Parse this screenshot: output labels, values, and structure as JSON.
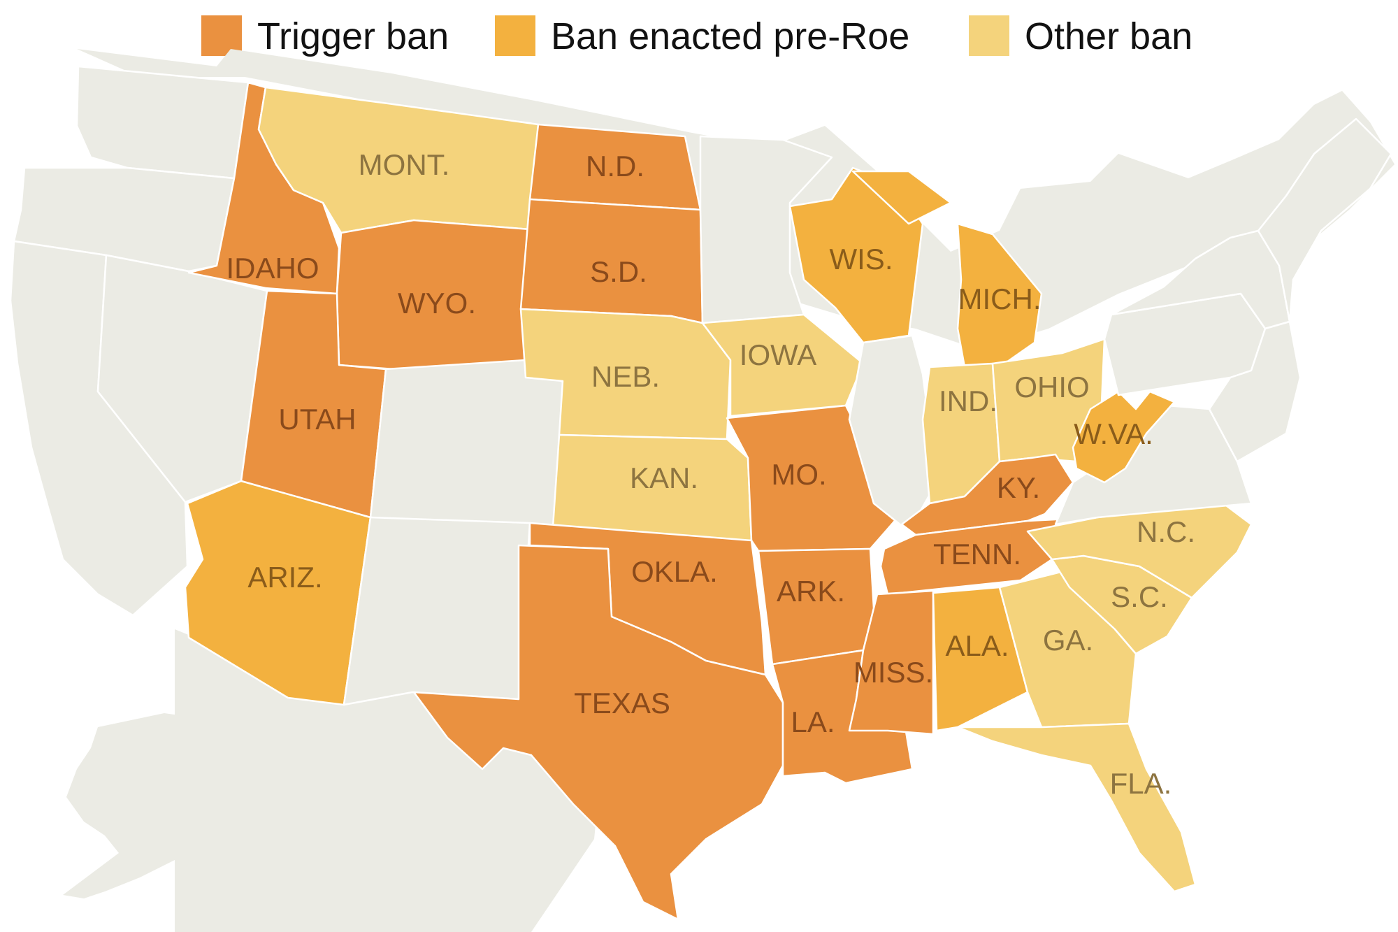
{
  "legend": {
    "items": [
      {
        "key": "trigger",
        "label": "Trigger ban",
        "color": "#ea9140"
      },
      {
        "key": "pre_roe",
        "label": "Ban enacted pre-Roe",
        "color": "#f3b13f"
      },
      {
        "key": "other",
        "label": "Other ban",
        "color": "#f4d37c"
      }
    ]
  },
  "colors": {
    "no_ban": "#ebebe4",
    "border": "#ffffff"
  },
  "states": {
    "mont": {
      "label": "MONT.",
      "category": "other"
    },
    "nd": {
      "label": "N.D.",
      "category": "trigger"
    },
    "idaho": {
      "label": "IDAHO",
      "category": "trigger"
    },
    "wyo": {
      "label": "WYO.",
      "category": "trigger"
    },
    "sd": {
      "label": "S.D.",
      "category": "trigger"
    },
    "wis": {
      "label": "WIS.",
      "category": "pre_roe"
    },
    "mich": {
      "label": "MICH.",
      "category": "pre_roe"
    },
    "iowa": {
      "label": "IOWA",
      "category": "other"
    },
    "neb": {
      "label": "NEB.",
      "category": "other"
    },
    "utah": {
      "label": "UTAH",
      "category": "trigger"
    },
    "ind": {
      "label": "IND.",
      "category": "other"
    },
    "ohio": {
      "label": "OHIO",
      "category": "other"
    },
    "wva": {
      "label": "W.VA.",
      "category": "pre_roe"
    },
    "kan": {
      "label": "KAN.",
      "category": "other"
    },
    "mo": {
      "label": "MO.",
      "category": "trigger"
    },
    "ky": {
      "label": "KY.",
      "category": "trigger"
    },
    "nc": {
      "label": "N.C.",
      "category": "other"
    },
    "ariz": {
      "label": "ARIZ.",
      "category": "pre_roe"
    },
    "okla": {
      "label": "OKLA.",
      "category": "trigger"
    },
    "tenn": {
      "label": "TENN.",
      "category": "trigger"
    },
    "ark": {
      "label": "ARK.",
      "category": "trigger"
    },
    "sc": {
      "label": "S.C.",
      "category": "other"
    },
    "ga": {
      "label": "GA.",
      "category": "other"
    },
    "ala": {
      "label": "ALA.",
      "category": "pre_roe"
    },
    "miss": {
      "label": "MISS.",
      "category": "trigger"
    },
    "texas": {
      "label": "TEXAS",
      "category": "trigger"
    },
    "la": {
      "label": "LA.",
      "category": "trigger"
    },
    "fla": {
      "label": "FLA.",
      "category": "other"
    }
  }
}
